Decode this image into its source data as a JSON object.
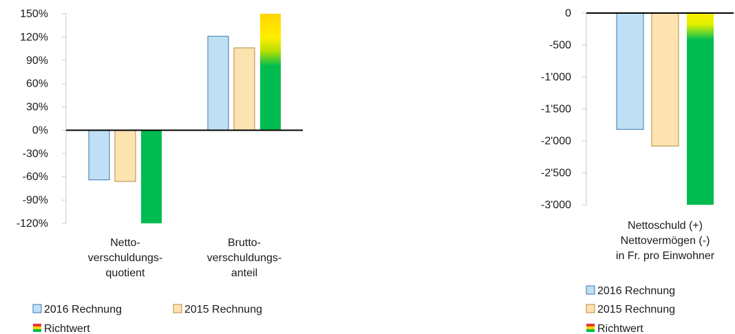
{
  "chart_data": [
    {
      "type": "bar",
      "categories": [
        [
          "Netto-",
          "verschuldungs-",
          "quotient"
        ],
        [
          "Brutto-",
          "verschuldungs-",
          "anteil"
        ]
      ],
      "ylim": [
        -120,
        150
      ],
      "yticks": [
        150,
        120,
        90,
        60,
        30,
        0,
        -30,
        -60,
        -90,
        -120
      ],
      "ytick_labels": [
        "150%",
        "120%",
        "90%",
        "60%",
        "30%",
        "0%",
        "-30%",
        "-60%",
        "-90%",
        "-120%"
      ],
      "series": [
        {
          "name": "2016 Rechnung",
          "values": [
            -64,
            121
          ],
          "color": "#bfe0f4",
          "stroke": "#3a74b8"
        },
        {
          "name": "2015 Rechnung",
          "values": [
            -66,
            106
          ],
          "color": "#fde3b0",
          "stroke": "#b48a3c"
        },
        {
          "name": "Richtwert",
          "values": [
            -120,
            150
          ],
          "color": "#00bc50",
          "gradient": true
        }
      ],
      "legend": [
        "2016 Rechnung",
        "2015 Rechnung",
        "Richtwert"
      ]
    },
    {
      "type": "bar",
      "categories": [
        [
          "Nettoschuld (+)",
          "Nettovermögen (-)",
          "in Fr. pro Einwohner"
        ]
      ],
      "ylim": [
        -3000,
        0
      ],
      "yticks": [
        0,
        -500,
        -1000,
        -1500,
        -2000,
        -2500,
        -3000
      ],
      "ytick_labels": [
        "0",
        "-500",
        "-1'000",
        "-1'500",
        "-2'000",
        "-2'500",
        "-3'000"
      ],
      "series": [
        {
          "name": "2016 Rechnung",
          "values": [
            -1820
          ],
          "color": "#bfe0f4",
          "stroke": "#3a74b8"
        },
        {
          "name": "2015 Rechnung",
          "values": [
            -2080
          ],
          "color": "#fde3b0",
          "stroke": "#b48a3c"
        },
        {
          "name": "Richtwert",
          "values": [
            -3000
          ],
          "color": "#00bc50",
          "gradient": true
        }
      ],
      "legend": [
        "2016 Rechnung",
        "2015 Rechnung",
        "Richtwert"
      ]
    }
  ]
}
